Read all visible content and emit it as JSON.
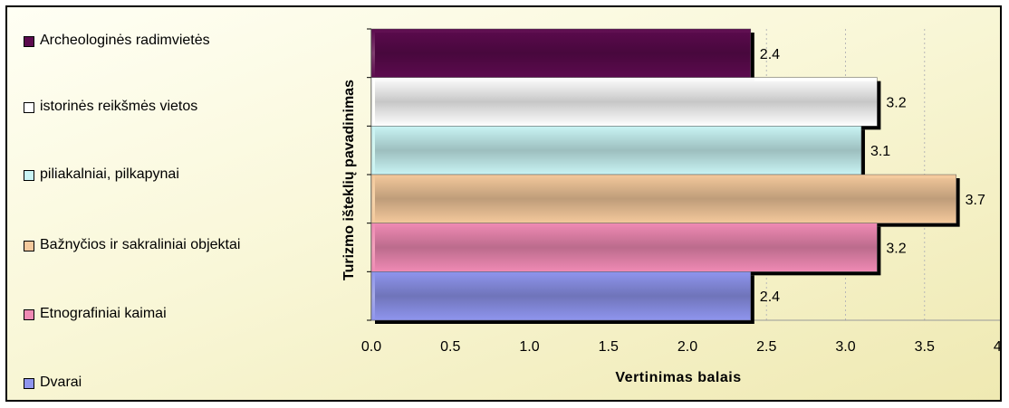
{
  "chart_data": {
    "type": "bar",
    "orientation": "horizontal",
    "categories": [
      "Archeologinės radimvietės",
      "istorinės reikšmės vietos",
      "piliakalniai, pilkapynai",
      "Bažnyčios ir sakraliniai objektai",
      "Etnografiniai kaimai",
      "Dvarai"
    ],
    "values": [
      2.4,
      3.2,
      3.1,
      3.7,
      3.2,
      2.4
    ],
    "value_labels": [
      "2.4",
      "3.2",
      "3.1",
      "3.7",
      "3.2",
      "2.4"
    ],
    "colors": [
      "#5c0a4e",
      "#ffffff",
      "#c9f4f4",
      "#f4c99c",
      "#f08ab4",
      "#8f95ee"
    ],
    "xlabel": "Vertinimas balais",
    "ylabel": "Turizmo išteklių pavadinimas",
    "xlim": [
      0,
      4
    ],
    "xticks": [
      "0.0",
      "0.5",
      "1.0",
      "1.5",
      "2.0",
      "2.5",
      "3.0",
      "3.5",
      "4.0"
    ],
    "grid": true,
    "legend_position": "left"
  }
}
